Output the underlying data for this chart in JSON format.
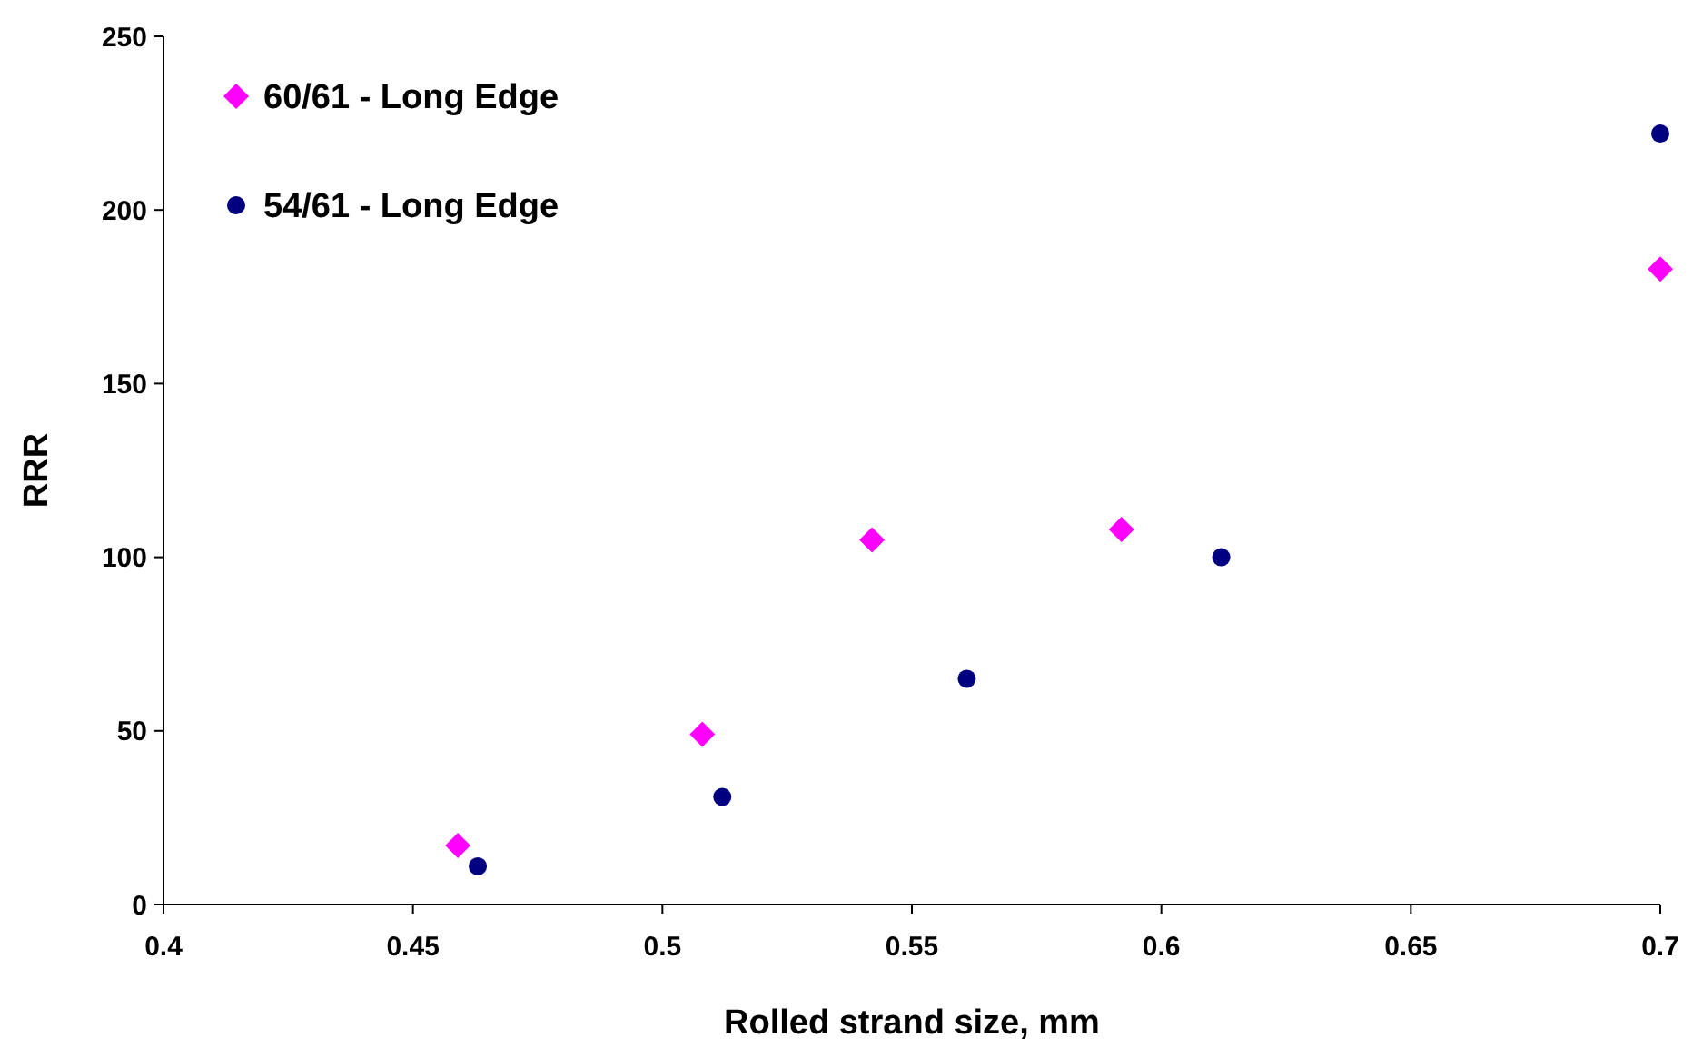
{
  "chart_data": {
    "type": "scatter",
    "xlabel": "Rolled strand size, mm",
    "ylabel": "RRR",
    "xlim": [
      0.4,
      0.7
    ],
    "xticks": [
      0.4,
      0.45,
      0.5,
      0.55,
      0.6,
      0.65,
      0.7
    ],
    "ylim": [
      0,
      250
    ],
    "yticks": [
      0,
      50,
      100,
      150,
      200,
      250
    ],
    "grid": false,
    "legend": "top left",
    "series": [
      {
        "name": "60/61 - Long Edge",
        "color": "#ff00ff",
        "marker": "diamond",
        "x": [
          0.459,
          0.508,
          0.542,
          0.592,
          0.7
        ],
        "values": [
          17,
          49,
          105,
          108,
          183
        ]
      },
      {
        "name": "54/61 - Long Edge",
        "color": "#000080",
        "marker": "circle",
        "x": [
          0.463,
          0.512,
          0.561,
          0.612,
          0.7
        ],
        "values": [
          11,
          31,
          65,
          100,
          222
        ]
      }
    ]
  }
}
